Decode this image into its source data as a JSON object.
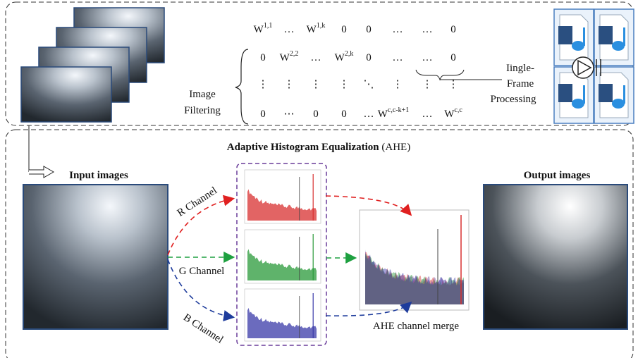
{
  "filtering": {
    "label_lines": [
      "Image",
      "Filtering"
    ]
  },
  "matrix": {
    "rows": [
      [
        {
          "base": "W",
          "sup": "1,1"
        },
        {
          "base": "…"
        },
        {
          "base": "W",
          "sup": "1,k"
        },
        {
          "base": "0"
        },
        {
          "base": "0"
        },
        {
          "base": "…"
        },
        {
          "base": "…"
        },
        {
          "base": "0"
        }
      ],
      [
        {
          "base": "0"
        },
        {
          "base": "W",
          "sup": "2,2"
        },
        {
          "base": "…"
        },
        {
          "base": "W",
          "sup": "2,k"
        },
        {
          "base": "0"
        },
        {
          "base": "…"
        },
        {
          "base": "…"
        },
        {
          "base": "0"
        }
      ],
      [
        {
          "base": "⋮"
        },
        {
          "base": "⋮"
        },
        {
          "base": "⋮"
        },
        {
          "base": "⋮"
        },
        {
          "base": "⋱"
        },
        {
          "base": "⋮"
        },
        {
          "base": "⋮"
        },
        {
          "base": "⋮"
        }
      ],
      [
        {
          "base": "0"
        },
        {
          "base": "⋯"
        },
        {
          "base": "0"
        },
        {
          "base": "0"
        },
        {
          "base": "…"
        },
        {
          "base": "W",
          "sup": "c,c-k+1"
        },
        {
          "base": "…"
        },
        {
          "base": "W",
          "sup": "c,c"
        }
      ]
    ]
  },
  "processing": {
    "label_lines": [
      "Iingle-",
      "Frame",
      "Processing"
    ]
  },
  "ahe": {
    "title": "Adaptive Histogram Equalization",
    "abbr": " (AHE)",
    "input_label": "Input images",
    "output_label": "Output images",
    "channels": [
      "R Channel",
      "G Channel",
      "B Channel"
    ],
    "merge_label": "AHE channel merge"
  }
}
